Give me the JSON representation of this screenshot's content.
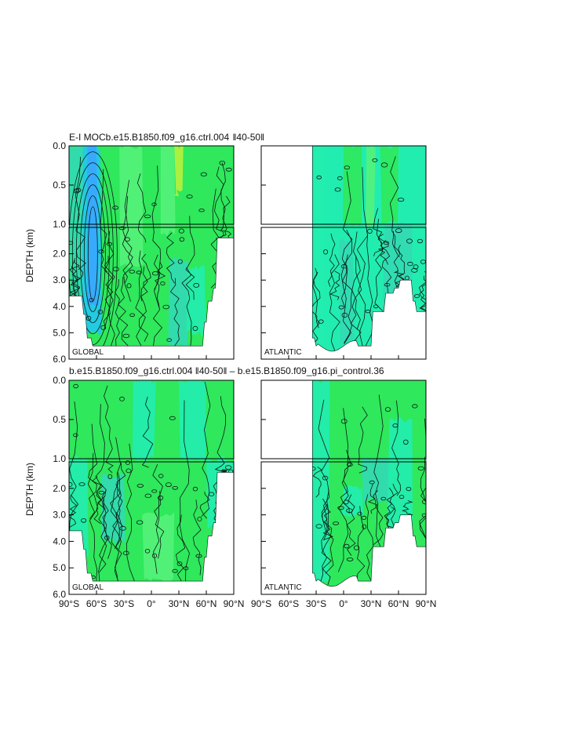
{
  "chart_data": {
    "type": "heatmap",
    "xticks": [
      "90°S",
      "60°S",
      "30°S",
      "0°",
      "30°N",
      "60°N",
      "90°N"
    ],
    "yticks_upper": [
      "0.0",
      "0.5",
      "1.0"
    ],
    "yticks_lower": [
      "2.0",
      "3.0",
      "4.0",
      "5.0",
      "6.0"
    ],
    "ylabel": "DEPTH (km)",
    "xrange": [
      -90,
      90
    ],
    "yrange": [
      0,
      6
    ],
    "colors": {
      "green": "#2fe85c",
      "green_light": "#55f27a",
      "aqua": "#22edb0",
      "teal": "#33d9b4",
      "blue": "#3aa6ff",
      "blue_mid": "#22c8f0",
      "yellow": "#b9f03e"
    },
    "rows": [
      {
        "title": "E-I MOCb.e15.B1850.f09_g16.ctrl.004  ‖40-50‖",
        "panels": [
          {
            "basin": "GLOBAL",
            "extent_lat": [
              -90,
              90
            ]
          },
          {
            "basin": "ATLANTIC",
            "extent_lat": [
              -34,
              90
            ]
          }
        ]
      },
      {
        "title": "b.e15.B1850.f09_g16.ctrl.004  ‖40-50‖ – b.e15.B1850.f09_g16.pi_control.36",
        "panels": [
          {
            "basin": "GLOBAL",
            "extent_lat": [
              -90,
              90
            ]
          },
          {
            "basin": "ATLANTIC",
            "extent_lat": [
              -34,
              90
            ]
          }
        ]
      }
    ]
  }
}
